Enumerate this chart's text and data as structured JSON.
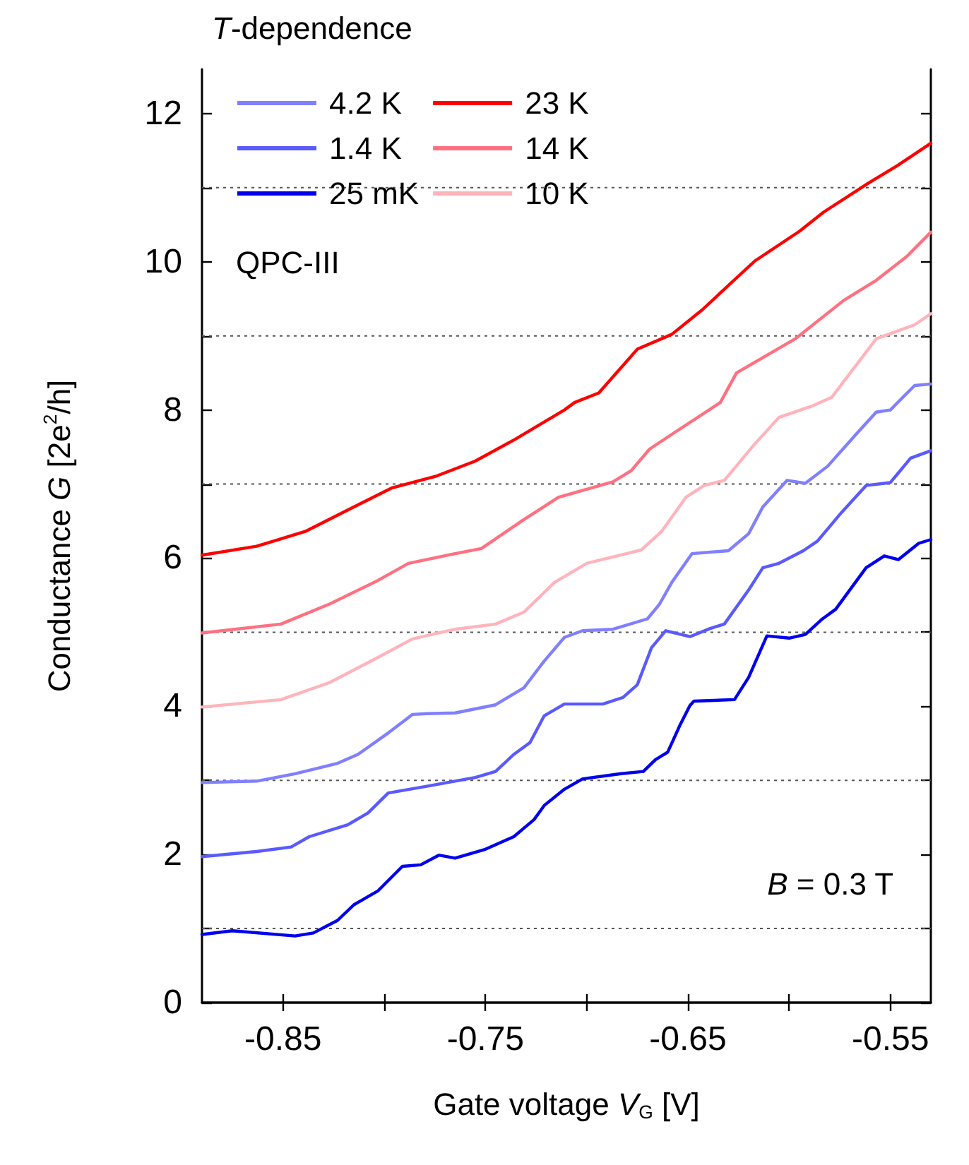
{
  "chart_data": {
    "type": "line",
    "title": "T-dependence",
    "xlabel": "Gate voltage V$_{G}$ [V]",
    "ylabel": "Conductance G [2e$^{2}$/h]",
    "annotations": [
      "QPC-III",
      "B = 0.3 T"
    ],
    "xlim": [
      -0.89,
      -0.53
    ],
    "xticks": [
      -0.85,
      {
        "value": -0.8,
        "label": null
      },
      -0.75,
      {
        "value": -0.7,
        "label": null
      },
      -0.65,
      {
        "value": -0.6,
        "label": null
      },
      -0.55
    ],
    "ylim": [
      0,
      12.6
    ],
    "yticks": [
      0,
      {
        "value": 1,
        "label": null
      },
      2,
      {
        "value": 3,
        "label": null
      },
      4,
      {
        "value": 5,
        "label": null
      },
      6,
      {
        "value": 7,
        "label": null
      },
      8,
      {
        "value": 9,
        "label": null
      },
      10,
      {
        "value": 11,
        "label": null
      },
      12
    ],
    "grid": "y",
    "legend": "top left",
    "marker": "none",
    "line_style": "solid",
    "series": [
      {
        "name": "4.2 K",
        "color": "#8080ff",
        "x": [
          -0.89,
          -0.863,
          -0.844,
          -0.823,
          -0.813,
          -0.798,
          -0.786,
          -0.779,
          -0.765,
          -0.745,
          -0.731,
          -0.721,
          -0.711,
          -0.702,
          -0.687,
          -0.67,
          -0.664,
          -0.658,
          -0.648,
          -0.63,
          -0.62,
          -0.613,
          -0.601,
          -0.592,
          -0.581,
          -0.567,
          -0.557,
          -0.55,
          -0.538,
          -0.53
        ],
        "values": [
          2.97,
          2.99,
          3.09,
          3.23,
          3.35,
          3.64,
          3.89,
          3.9,
          3.91,
          4.02,
          4.25,
          4.61,
          4.93,
          5.02,
          5.04,
          5.18,
          5.38,
          5.67,
          6.06,
          6.1,
          6.33,
          6.69,
          7.05,
          7.01,
          7.24,
          7.67,
          7.97,
          8.0,
          8.33,
          8.35
        ]
      },
      {
        "name": "1.4 K",
        "color": "#5a5aff",
        "x": [
          -0.89,
          -0.863,
          -0.846,
          -0.837,
          -0.818,
          -0.808,
          -0.798,
          -0.779,
          -0.755,
          -0.745,
          -0.736,
          -0.728,
          -0.721,
          -0.711,
          -0.692,
          -0.682,
          -0.675,
          -0.668,
          -0.661,
          -0.649,
          -0.639,
          -0.632,
          -0.62,
          -0.613,
          -0.605,
          -0.593,
          -0.586,
          -0.574,
          -0.562,
          -0.55,
          -0.54,
          -0.53
        ],
        "values": [
          1.97,
          2.04,
          2.1,
          2.24,
          2.4,
          2.56,
          2.83,
          2.92,
          3.04,
          3.12,
          3.35,
          3.51,
          3.87,
          4.03,
          4.03,
          4.12,
          4.29,
          4.79,
          5.02,
          4.94,
          5.05,
          5.11,
          5.57,
          5.87,
          5.93,
          6.1,
          6.23,
          6.62,
          6.98,
          7.02,
          7.35,
          7.45
        ]
      },
      {
        "name": "25 mK",
        "color": "#0000ee",
        "x": [
          -0.89,
          -0.875,
          -0.844,
          -0.835,
          -0.823,
          -0.815,
          -0.803,
          -0.791,
          -0.782,
          -0.773,
          -0.765,
          -0.75,
          -0.736,
          -0.726,
          -0.721,
          -0.711,
          -0.702,
          -0.683,
          -0.672,
          -0.666,
          -0.66,
          -0.654,
          -0.649,
          -0.647,
          -0.627,
          -0.62,
          -0.611,
          -0.6,
          -0.592,
          -0.584,
          -0.577,
          -0.562,
          -0.553,
          -0.546,
          -0.536,
          -0.53
        ],
        "values": [
          0.92,
          0.97,
          0.9,
          0.94,
          1.11,
          1.32,
          1.51,
          1.84,
          1.86,
          1.99,
          1.95,
          2.07,
          2.24,
          2.47,
          2.66,
          2.88,
          3.02,
          3.09,
          3.12,
          3.28,
          3.38,
          3.74,
          4.01,
          4.07,
          4.09,
          4.39,
          4.95,
          4.92,
          4.97,
          5.17,
          5.31,
          5.87,
          6.03,
          5.98,
          6.2,
          6.25
        ]
      },
      {
        "name": "23 K",
        "color": "#ff0000",
        "x": [
          -0.89,
          -0.863,
          -0.839,
          -0.815,
          -0.796,
          -0.774,
          -0.755,
          -0.735,
          -0.711,
          -0.706,
          -0.694,
          -0.675,
          -0.658,
          -0.643,
          -0.617,
          -0.595,
          -0.583,
          -0.561,
          -0.547,
          -0.53
        ],
        "values": [
          6.04,
          6.16,
          6.36,
          6.69,
          6.95,
          7.11,
          7.31,
          7.61,
          8.0,
          8.1,
          8.23,
          8.82,
          9.02,
          9.35,
          10.01,
          10.41,
          10.67,
          11.06,
          11.29,
          11.6
        ]
      },
      {
        "name": "14 K",
        "color": "#ff7080",
        "x": [
          -0.89,
          -0.851,
          -0.827,
          -0.803,
          -0.788,
          -0.765,
          -0.752,
          -0.731,
          -0.714,
          -0.687,
          -0.678,
          -0.669,
          -0.658,
          -0.634,
          -0.626,
          -0.609,
          -0.597,
          -0.573,
          -0.557,
          -0.542,
          -0.53
        ],
        "values": [
          4.99,
          5.11,
          5.38,
          5.7,
          5.93,
          6.06,
          6.13,
          6.52,
          6.82,
          7.03,
          7.18,
          7.47,
          7.67,
          8.1,
          8.5,
          8.77,
          8.96,
          9.48,
          9.75,
          10.07,
          10.4
        ]
      },
      {
        "name": "10 K",
        "color": "#ffb4bc",
        "x": [
          -0.89,
          -0.851,
          -0.827,
          -0.803,
          -0.786,
          -0.765,
          -0.745,
          -0.731,
          -0.716,
          -0.7,
          -0.673,
          -0.663,
          -0.651,
          -0.642,
          -0.632,
          -0.617,
          -0.605,
          -0.588,
          -0.579,
          -0.557,
          -0.538,
          -0.53
        ],
        "values": [
          3.99,
          4.09,
          4.32,
          4.66,
          4.91,
          5.04,
          5.11,
          5.27,
          5.67,
          5.93,
          6.11,
          6.36,
          6.82,
          6.98,
          7.05,
          7.54,
          7.9,
          8.06,
          8.17,
          8.96,
          9.15,
          9.3
        ]
      }
    ]
  }
}
